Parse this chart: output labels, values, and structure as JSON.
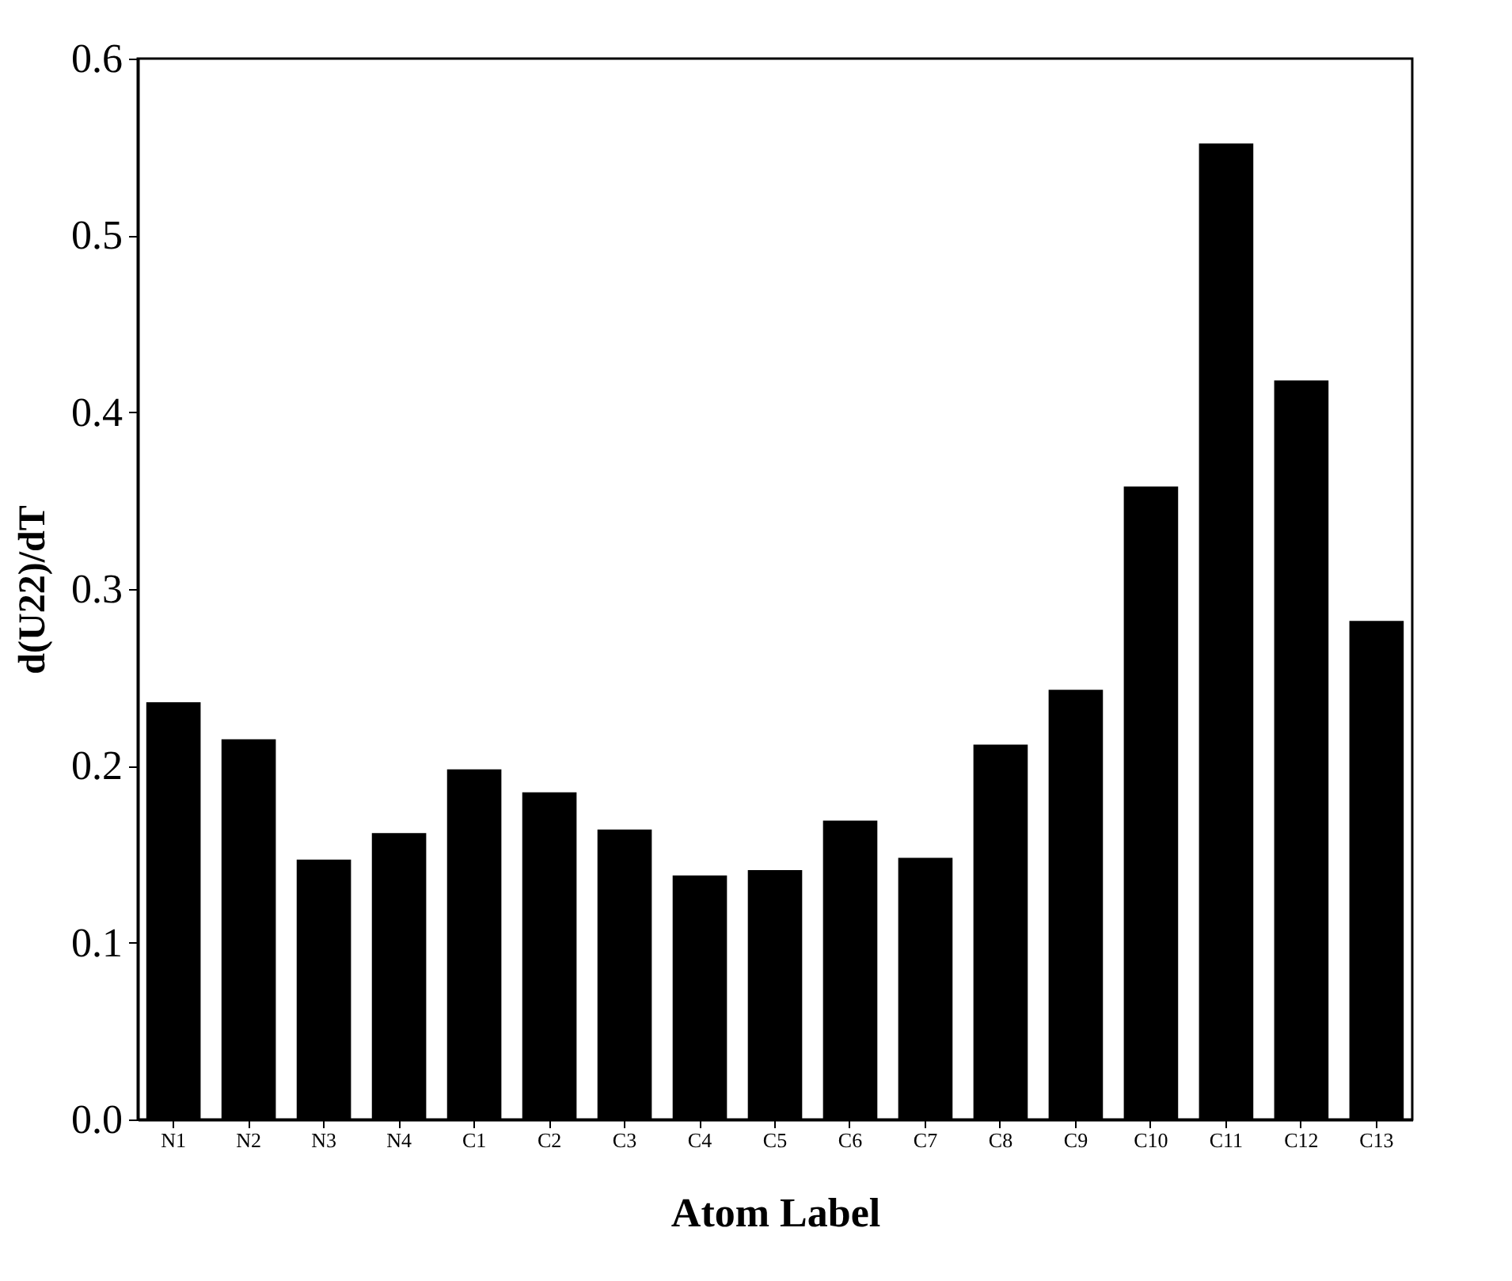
{
  "chart_data": {
    "type": "bar",
    "xlabel": "Atom Label",
    "ylabel": "d(U22)/dT",
    "categories": [
      "N1",
      "N2",
      "N3",
      "N4",
      "C1",
      "C2",
      "C3",
      "C4",
      "C5",
      "C6",
      "C7",
      "C8",
      "C9",
      "C10",
      "C11",
      "C12",
      "C13"
    ],
    "values": [
      0.236,
      0.215,
      0.147,
      0.162,
      0.198,
      0.185,
      0.164,
      0.138,
      0.141,
      0.169,
      0.148,
      0.212,
      0.243,
      0.358,
      0.552,
      0.418,
      0.282
    ],
    "color": "#000000",
    "ylim": [
      0,
      0.6
    ],
    "yticks": [
      {
        "value": 0,
        "label": "0.0"
      },
      0.1,
      0.2,
      0.3,
      0.4,
      0.5,
      0.6
    ],
    "grid": false
  }
}
